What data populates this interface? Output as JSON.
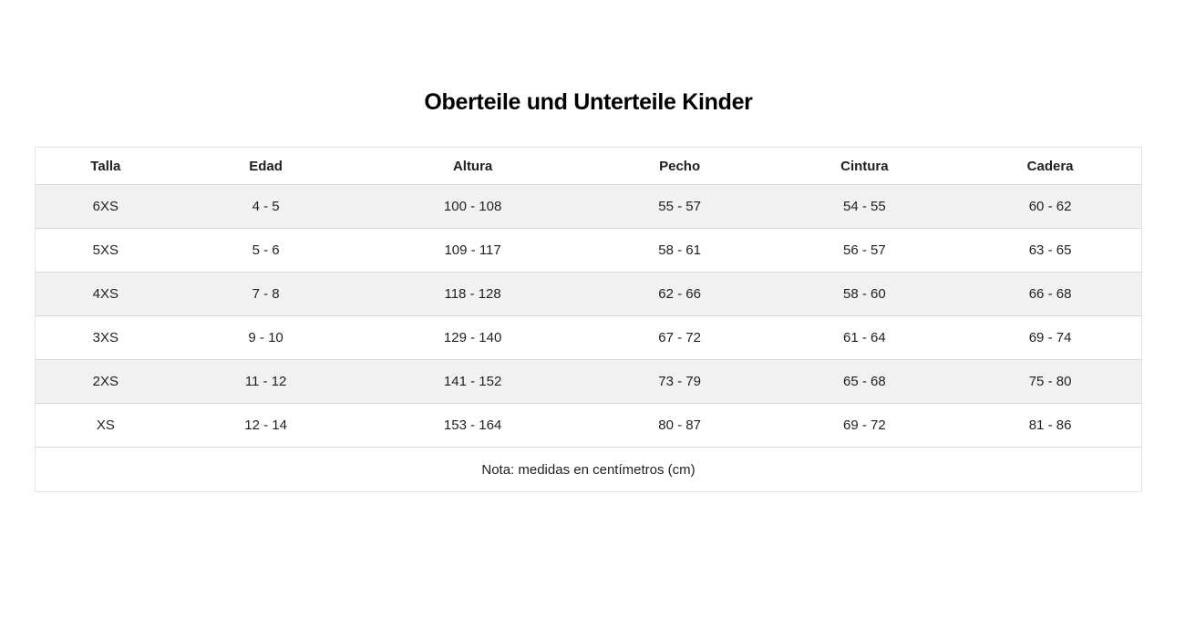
{
  "page": {
    "title": "Oberteile und Unterteile Kinder"
  },
  "table": {
    "columns": [
      "Talla",
      "Edad",
      "Altura",
      "Pecho",
      "Cintura",
      "Cadera"
    ],
    "rows": [
      [
        "6XS",
        "4 - 5",
        "100 - 108",
        "55 - 57",
        "54 - 55",
        "60 - 62"
      ],
      [
        "5XS",
        "5 - 6",
        "109 - 117",
        "58 - 61",
        "56 - 57",
        "63 - 65"
      ],
      [
        "4XS",
        "7 - 8",
        "118 - 128",
        "62 - 66",
        "58 - 60",
        "66 - 68"
      ],
      [
        "3XS",
        "9 - 10",
        "129 - 140",
        "67 - 72",
        "61 - 64",
        "69 - 74"
      ],
      [
        "2XS",
        "11 - 12",
        "141 - 152",
        "73 - 79",
        "65 - 68",
        "75 - 80"
      ],
      [
        "XS",
        "12 - 14",
        "153 - 164",
        "80 - 87",
        "69 - 72",
        "81 - 86"
      ]
    ],
    "note": "Nota: medidas en centímetros (cm)"
  },
  "colors": {
    "stripe_row": "#f1f1f1",
    "outer_border": "#e4e4e4",
    "row_divider": "#d9d9d9",
    "text": "#1f1f1f",
    "title_text": "#000000",
    "background": "#ffffff"
  }
}
